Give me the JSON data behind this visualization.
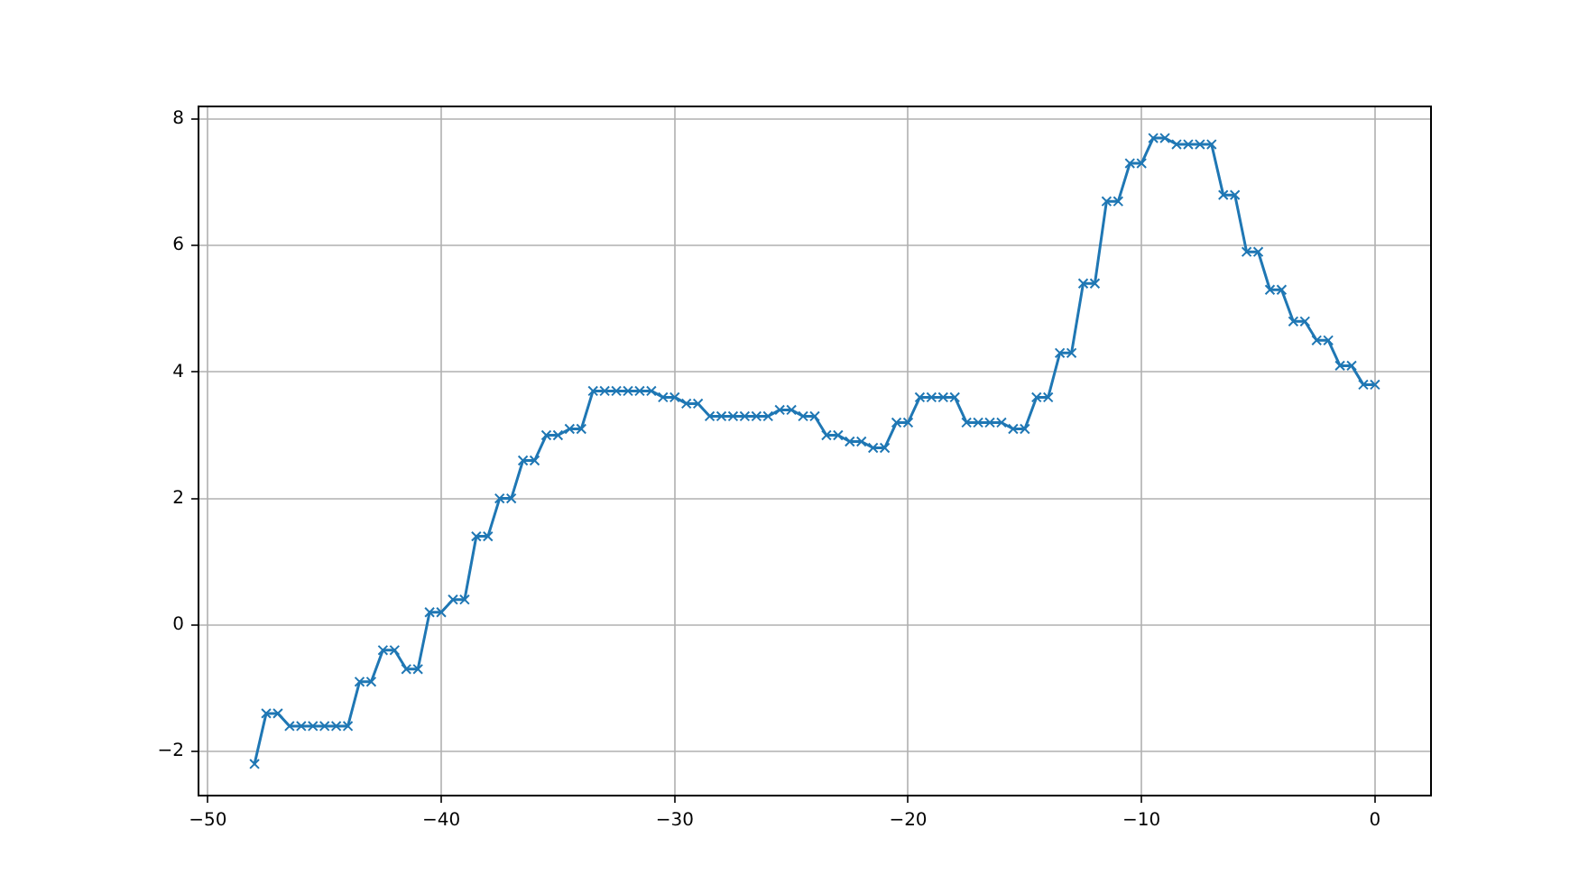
{
  "chart_data": {
    "type": "line",
    "x": [
      -48,
      -47.5,
      -47,
      -46.5,
      -46,
      -45.5,
      -45,
      -44.5,
      -44,
      -43.5,
      -43,
      -42.5,
      -42,
      -41.5,
      -41,
      -40.5,
      -40,
      -39.5,
      -39,
      -38.5,
      -38,
      -37.5,
      -37,
      -36.5,
      -36,
      -35.5,
      -35,
      -34.5,
      -34,
      -33.5,
      -33,
      -32.5,
      -32,
      -31.5,
      -31,
      -30.5,
      -30,
      -29.5,
      -29,
      -28.5,
      -28,
      -27.5,
      -27,
      -26.5,
      -26,
      -25.5,
      -25,
      -24.5,
      -24,
      -23.5,
      -23,
      -22.5,
      -22,
      -21.5,
      -21,
      -20.5,
      -20,
      -19.5,
      -19,
      -18.5,
      -18,
      -17.5,
      -17,
      -16.5,
      -16,
      -15.5,
      -15,
      -14.5,
      -14,
      -13.5,
      -13,
      -12.5,
      -12,
      -11.5,
      -11,
      -10.5,
      -10,
      -9.5,
      -9,
      -8.5,
      -8,
      -7.5,
      -7,
      -6.5,
      -6,
      -5.5,
      -5,
      -4.5,
      -4,
      -3.5,
      -3,
      -2.5,
      -2,
      -1.5,
      -1,
      -0.5,
      0
    ],
    "values": [
      -2.2,
      -1.4,
      -1.4,
      -1.6,
      -1.6,
      -1.6,
      -1.6,
      -1.6,
      -1.6,
      -0.9,
      -0.9,
      -0.4,
      -0.4,
      -0.7,
      -0.7,
      0.2,
      0.2,
      0.4,
      0.4,
      1.4,
      1.4,
      2.0,
      2.0,
      2.6,
      2.6,
      3.0,
      3.0,
      3.1,
      3.1,
      3.7,
      3.7,
      3.7,
      3.7,
      3.7,
      3.7,
      3.6,
      3.6,
      3.5,
      3.5,
      3.3,
      3.3,
      3.3,
      3.3,
      3.3,
      3.3,
      3.4,
      3.4,
      3.3,
      3.3,
      3.0,
      3.0,
      2.9,
      2.9,
      2.8,
      2.8,
      3.2,
      3.2,
      3.6,
      3.6,
      3.6,
      3.6,
      3.2,
      3.2,
      3.2,
      3.2,
      3.1,
      3.1,
      3.6,
      3.6,
      4.3,
      4.3,
      5.4,
      5.4,
      6.7,
      6.7,
      7.3,
      7.3,
      7.7,
      7.7,
      7.6,
      7.6,
      7.6,
      7.6,
      6.8,
      6.8,
      5.9,
      5.9,
      5.3,
      5.3,
      4.8,
      4.8,
      4.5,
      4.5,
      4.1,
      4.1,
      3.8,
      3.8
    ],
    "color": "#1f77b4",
    "xlim": [
      -50.4,
      2.4
    ],
    "ylim": [
      -2.7,
      8.2
    ],
    "xticks": [
      {
        "value": -50,
        "label": "−50"
      },
      {
        "value": -40,
        "label": "−40"
      },
      {
        "value": -30,
        "label": "−30"
      },
      {
        "value": -20,
        "label": "−20"
      },
      {
        "value": -10,
        "label": "−10"
      },
      0
    ],
    "yticks": [
      {
        "value": -2,
        "label": "−2"
      },
      0,
      2,
      4,
      6,
      8
    ],
    "grid": true,
    "marker": "cross",
    "line_style": "solid"
  }
}
